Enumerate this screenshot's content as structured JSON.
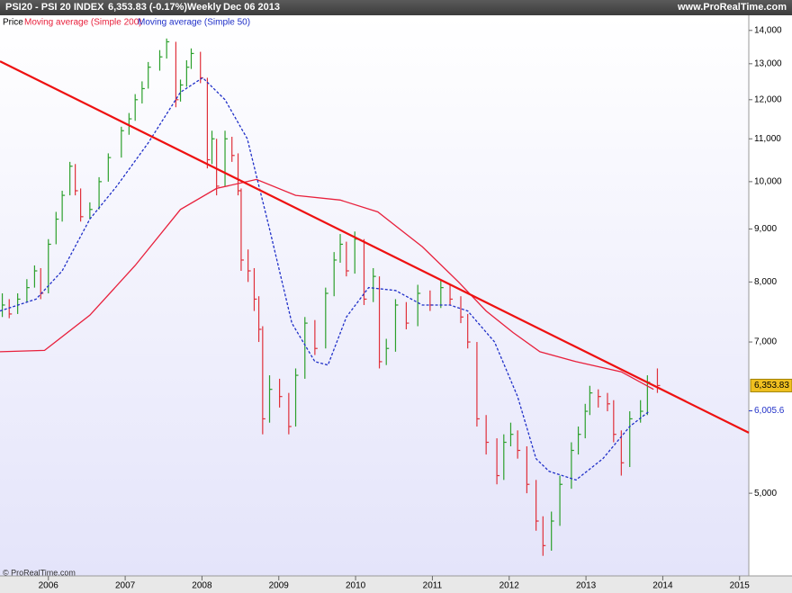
{
  "header": {
    "symbol": "PSI20 - PSI 20 INDEX",
    "quote": "6,353.83 (-0.17%)",
    "period": "Weekly",
    "date": "Dec 06 2013",
    "site": "www.ProRealTime.com"
  },
  "footer": "© ProRealTime.com",
  "chart_data": {
    "type": "ohlc",
    "log_scale": true,
    "xlim": [
      2005.37,
      2015.12
    ],
    "xticks": [
      2006,
      2007,
      2008,
      2009,
      2010,
      2011,
      2012,
      2013,
      2014,
      2015
    ],
    "ylim": [
      4160,
      14450
    ],
    "yticks": [
      {
        "value": 5000,
        "label": "5,000"
      },
      {
        "value": 7000,
        "label": "7,000"
      },
      {
        "value": 8000,
        "label": "8,000"
      },
      {
        "value": 9000,
        "label": "9,000"
      },
      {
        "value": 10000,
        "label": "10,000"
      },
      {
        "value": 11000,
        "label": "11,000"
      },
      {
        "value": 12000,
        "label": "12,000"
      },
      {
        "value": 13000,
        "label": "13,000"
      },
      {
        "value": 14000,
        "label": "14,000"
      }
    ],
    "price": {
      "name": "Price",
      "up_color": "#2ca02c",
      "down_color": "#e0303a",
      "x": [
        2005.4,
        2005.49,
        2005.6,
        2005.72,
        2005.82,
        2005.9,
        2006.0,
        2006.1,
        2006.18,
        2006.28,
        2006.35,
        2006.42,
        2006.54,
        2006.66,
        2006.78,
        2006.95,
        2007.05,
        2007.13,
        2007.22,
        2007.3,
        2007.45,
        2007.54,
        2007.66,
        2007.72,
        2007.8,
        2007.86,
        2007.98,
        2008.07,
        2008.13,
        2008.19,
        2008.3,
        2008.39,
        2008.47,
        2008.51,
        2008.6,
        2008.68,
        2008.74,
        2008.79,
        2008.88,
        2009.01,
        2009.13,
        2009.22,
        2009.34,
        2009.47,
        2009.61,
        2009.72,
        2009.8,
        2009.88,
        2009.99,
        2010.11,
        2010.23,
        2010.31,
        2010.4,
        2010.52,
        2010.66,
        2010.81,
        2010.97,
        2011.11,
        2011.23,
        2011.37,
        2011.46,
        2011.58,
        2011.7,
        2011.84,
        2011.93,
        2012.02,
        2012.11,
        2012.23,
        2012.35,
        2012.44,
        2012.55,
        2012.66,
        2012.81,
        2012.9,
        2012.99,
        2013.05,
        2013.16,
        2013.28,
        2013.36,
        2013.46,
        2013.57,
        2013.71,
        2013.8,
        2013.93
      ],
      "close": [
        7600,
        7450,
        7700,
        7900,
        8200,
        7800,
        8700,
        9200,
        9700,
        10350,
        9800,
        9250,
        9400,
        10000,
        10550,
        11200,
        11500,
        12000,
        12300,
        12900,
        13200,
        13650,
        12000,
        12400,
        12900,
        13300,
        12600,
        10500,
        11000,
        9900,
        11000,
        10600,
        9800,
        8400,
        8200,
        7700,
        7200,
        5900,
        6300,
        6200,
        5800,
        6500,
        7300,
        6900,
        7800,
        8400,
        8700,
        8200,
        8800,
        7700,
        8100,
        6700,
        6900,
        7600,
        7300,
        7800,
        7600,
        7900,
        7700,
        7400,
        7000,
        5900,
        5600,
        5200,
        5600,
        5700,
        5500,
        5100,
        4700,
        4450,
        4700,
        5100,
        5500,
        5700,
        6000,
        6250,
        6200,
        6100,
        5700,
        5350,
        5900,
        6000,
        6400,
        6353.83
      ],
      "high": [
        7800,
        7700,
        7800,
        8050,
        8300,
        8250,
        8800,
        9350,
        9800,
        10450,
        10400,
        9850,
        9550,
        10100,
        10650,
        11300,
        11650,
        12150,
        12500,
        13050,
        13400,
        13750,
        13650,
        12550,
        13100,
        13450,
        13350,
        12600,
        11200,
        11000,
        11200,
        11050,
        10650,
        9850,
        8600,
        8250,
        7750,
        7250,
        6500,
        6450,
        6250,
        6600,
        7400,
        7350,
        7900,
        8550,
        8900,
        8750,
        8950,
        8800,
        8250,
        8100,
        7050,
        7700,
        7650,
        7950,
        7850,
        8050,
        7950,
        7750,
        7450,
        7000,
        5950,
        5650,
        5700,
        5850,
        5750,
        5550,
        5150,
        4750,
        4800,
        5200,
        5600,
        5800,
        6100,
        6350,
        6300,
        6250,
        6150,
        5750,
        6000,
        6150,
        6500,
        6600
      ],
      "low": [
        7400,
        7380,
        7450,
        7650,
        7900,
        7700,
        7800,
        8700,
        9150,
        9700,
        9700,
        9150,
        9200,
        9400,
        10000,
        10550,
        11100,
        11450,
        11900,
        12300,
        12800,
        13150,
        11800,
        11950,
        12350,
        12850,
        12450,
        10300,
        10400,
        9700,
        9900,
        10450,
        9700,
        8200,
        8000,
        7500,
        7000,
        5700,
        5850,
        6050,
        5700,
        5800,
        6450,
        6800,
        6900,
        7750,
        8350,
        8100,
        8150,
        7600,
        7650,
        6600,
        6650,
        6850,
        7200,
        7250,
        7500,
        7550,
        7600,
        7300,
        6900,
        5800,
        5450,
        5100,
        5150,
        5550,
        5400,
        5000,
        4600,
        4350,
        4400,
        4650,
        5050,
        5450,
        5650,
        5950,
        6050,
        6000,
        5600,
        5200,
        5300,
        5850,
        5950,
        6250
      ]
    },
    "series": [
      {
        "name": "Moving average (Simple 200)",
        "color": "#e8203c",
        "dashed": false,
        "x": [
          2005.37,
          2005.95,
          2006.54,
          2007.13,
          2007.72,
          2008.19,
          2008.71,
          2009.22,
          2009.8,
          2010.29,
          2010.87,
          2011.34,
          2011.7,
          2012.05,
          2012.4,
          2012.87,
          2013.46,
          2013.88
        ],
        "values": [
          6850,
          6870,
          7430,
          8300,
          9400,
          9850,
          10050,
          9700,
          9600,
          9350,
          8650,
          8000,
          7500,
          7150,
          6850,
          6700,
          6550,
          6300
        ]
      },
      {
        "name": "Moving average (Simple 50)",
        "color": "#2030c8",
        "dashed": true,
        "x": [
          2005.37,
          2005.84,
          2006.18,
          2006.54,
          2006.89,
          2007.3,
          2007.72,
          2008.01,
          2008.3,
          2008.59,
          2008.88,
          2009.17,
          2009.47,
          2009.64,
          2009.88,
          2010.17,
          2010.52,
          2010.87,
          2011.23,
          2011.46,
          2011.81,
          2012.11,
          2012.35,
          2012.52,
          2012.87,
          2013.22,
          2013.57,
          2013.83
        ],
        "values": [
          7500,
          7700,
          8200,
          9200,
          9900,
          10900,
          12200,
          12600,
          12000,
          11000,
          9000,
          7300,
          6700,
          6650,
          7400,
          7900,
          7850,
          7600,
          7600,
          7500,
          7000,
          6200,
          5400,
          5250,
          5150,
          5400,
          5800,
          6005.6
        ]
      }
    ],
    "trendline": {
      "color": "#ee1111",
      "x": [
        2005.37,
        2015.12
      ],
      "values": [
        13070,
        5720
      ]
    },
    "last_price": {
      "value": 6353.83,
      "label": "6,353.83",
      "color": "#f0c020"
    },
    "last_ma50": {
      "value": 6005.6,
      "label": "6,005.6",
      "color": "#2030c8"
    }
  }
}
